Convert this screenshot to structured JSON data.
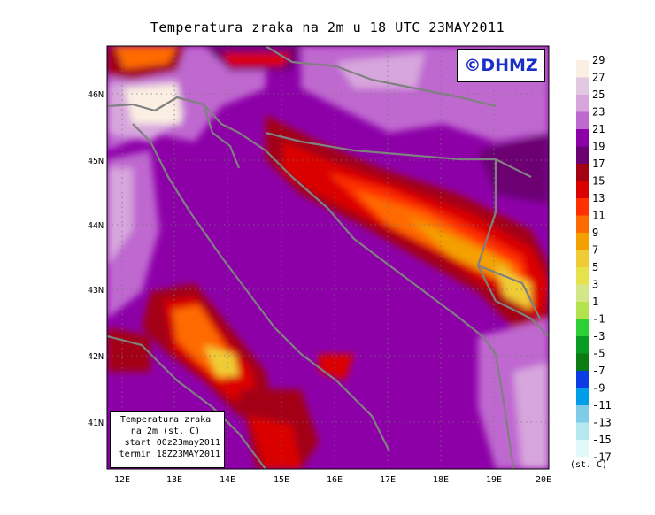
{
  "title": "Temperatura zraka na 2m u 18 UTC 23MAY2011",
  "logo": "©DHMZ",
  "info": {
    "line1": "Temperatura zraka",
    "line2": "na 2m (st. C)",
    "line3": "start 00z23may2011",
    "line4": "termin 18Z23MAY2011"
  },
  "lat_labels": [
    "46N",
    "45N",
    "44N",
    "43N",
    "42N",
    "41N"
  ],
  "lon_labels": [
    "12E",
    "13E",
    "14E",
    "15E",
    "16E",
    "17E",
    "18E",
    "19E",
    "20E"
  ],
  "colorbar": {
    "unit": "(st. C)",
    "levels": [
      "29",
      "27",
      "25",
      "23",
      "21",
      "19",
      "17",
      "15",
      "13",
      "11",
      "9",
      "7",
      "5",
      "3",
      "1",
      "-1",
      "-3",
      "-5",
      "-7",
      "-9",
      "-11",
      "-13",
      "-15",
      "-17"
    ],
    "colors": [
      "#fbeee2",
      "#e2c8e0",
      "#d7a6dd",
      "#bf68d0",
      "#8d00a8",
      "#6c0073",
      "#a30013",
      "#db0000",
      "#ff2f00",
      "#ff6a00",
      "#f3a000",
      "#efcc35",
      "#e5e24d",
      "#d3e688",
      "#b4e14e",
      "#2ccf35",
      "#0a9b22",
      "#0b7b13",
      "#0c3ce6",
      "#009ee8",
      "#7fcbe8",
      "#b6e8f0",
      "#e3f8f8"
    ]
  }
}
